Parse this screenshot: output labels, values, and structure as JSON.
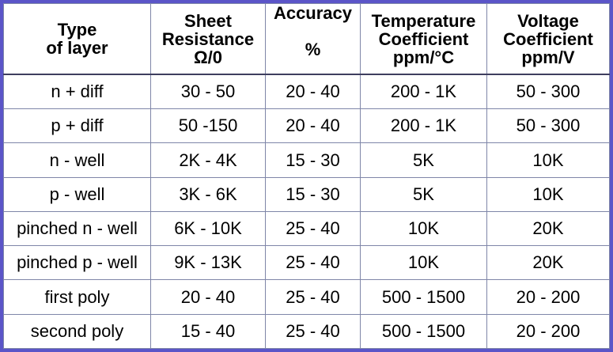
{
  "table": {
    "header": [
      [
        "Type",
        "of layer"
      ],
      [
        "Sheet",
        "Resistance",
        "Ω/0"
      ],
      [
        "Accuracy",
        "%"
      ],
      [
        "Temperature",
        "Coefficient",
        "ppm/°C"
      ],
      [
        "Voltage",
        "Coefficient",
        "ppm/V"
      ]
    ],
    "rows": [
      [
        "n + diff",
        "30 - 50",
        "20 - 40",
        "200 - 1K",
        "50 - 300"
      ],
      [
        "p + diff",
        "50 -150",
        "20 - 40",
        "200 - 1K",
        "50 - 300"
      ],
      [
        "n - well",
        "2K - 4K",
        "15 - 30",
        "5K",
        "10K"
      ],
      [
        "p - well",
        "3K - 6K",
        "15 - 30",
        "5K",
        "10K"
      ],
      [
        "pinched n - well",
        "6K - 10K",
        "25 - 40",
        "10K",
        "20K"
      ],
      [
        "pinched p - well",
        "9K - 13K",
        "25 - 40",
        "10K",
        "20K"
      ],
      [
        "first poly",
        "20 - 40",
        "25 - 40",
        "500 - 1500",
        "20 - 200"
      ],
      [
        "second poly",
        "15 - 40",
        "25 - 40",
        "500 - 1500",
        "20 - 200"
      ]
    ]
  }
}
